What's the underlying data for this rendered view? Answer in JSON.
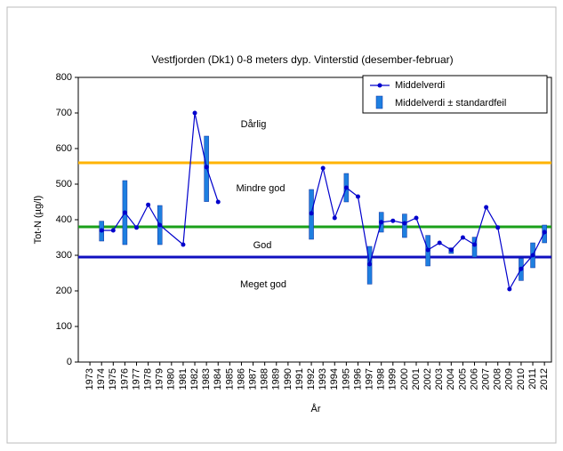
{
  "chart_data": {
    "type": "line",
    "title": "Vestfjorden (Dk1) 0-8 meters dyp. Vinterstid (desember-februar)",
    "x_label": "År",
    "y_label": "Tot-N (µg/l)",
    "xlim": [
      1972,
      2012.6
    ],
    "xticks": [
      1973,
      1974,
      1975,
      1976,
      1977,
      1978,
      1979,
      1980,
      1981,
      1982,
      1983,
      1984,
      1985,
      1986,
      1987,
      1988,
      1989,
      1990,
      1991,
      1992,
      1993,
      1994,
      1995,
      1996,
      1997,
      1998,
      1999,
      2000,
      2001,
      2002,
      2003,
      2004,
      2005,
      2006,
      2007,
      2008,
      2009,
      2010,
      2011,
      2012
    ],
    "ylim": [
      0,
      800
    ],
    "yticks": [
      0,
      100,
      200,
      300,
      400,
      500,
      600,
      700,
      800
    ],
    "series": [
      {
        "name": "Middelverdi",
        "color": "#0000cc",
        "x": [
          1974,
          1975,
          1976,
          1977,
          1978,
          1979,
          1981,
          1982,
          1983,
          1984,
          1988,
          1992,
          1993,
          1994,
          1995,
          1996,
          1997,
          1998,
          1999,
          2000,
          2001,
          2002,
          2003,
          2004,
          2005,
          2006,
          2007,
          2008,
          2009,
          2010,
          2011,
          2012
        ],
        "values": [
          370,
          370,
          420,
          378,
          442,
          385,
          330,
          700,
          548,
          450,
          null,
          418,
          545,
          405,
          490,
          465,
          275,
          393,
          397,
          390,
          405,
          315,
          335,
          315,
          350,
          330,
          435,
          378,
          205,
          262,
          300,
          365
        ]
      }
    ],
    "error_series": {
      "name": "Middelverdi ± standardfeil",
      "color": "#1e7fe0",
      "x": [
        1974,
        1976,
        1979,
        1983,
        1992,
        1995,
        1997,
        1998,
        2000,
        2002,
        2004,
        2006,
        2010,
        2011,
        2012
      ],
      "values": [
        368,
        420,
        385,
        543,
        415,
        490,
        272,
        393,
        383,
        313,
        313,
        323,
        260,
        300,
        360
      ],
      "errors": [
        28,
        90,
        55,
        92,
        70,
        40,
        53,
        28,
        33,
        43,
        8,
        28,
        31,
        35,
        25
      ]
    },
    "reference_lines": [
      {
        "value": 560,
        "color": "#ffb300"
      },
      {
        "value": 380,
        "color": "#1aa01a"
      },
      {
        "value": 295,
        "color": "#1010c0"
      }
    ],
    "annotations": [
      "Dårlig",
      "Mindre god",
      "God",
      "Meget god"
    ]
  }
}
